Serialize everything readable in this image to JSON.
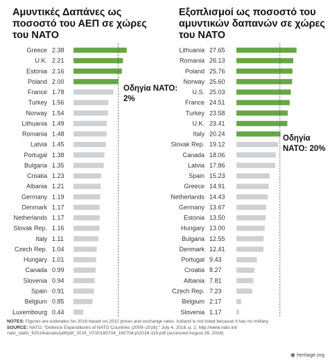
{
  "chart_data": [
    {
      "type": "bar",
      "orientation": "horizontal",
      "title": "Αμυντικές Δαπάνες ως ποσοστό του ΑΕΠ σε χώρες του ΝΑΤΟ",
      "title_lines": [
        "Αμυντικές Δαπάνες ως",
        "ποσοστό του ΑΕΠ σε χώρες",
        "του ΝΑΤΟ"
      ],
      "categories": [
        "Greece",
        "U.K.",
        "Estonia",
        "Poland",
        "France",
        "Turkey",
        "Norway",
        "Lithuania",
        "Romania",
        "Latvia",
        "Portugal",
        "Bulgaria",
        "Croatia",
        "Albania",
        "Germany",
        "Denmark",
        "Netherlands",
        "Slovak Rep.",
        "Italy",
        "Czech Rep.",
        "Hungary",
        "Canada",
        "Slovenia",
        "Spain",
        "Belgium",
        "Luxembourg"
      ],
      "values": [
        2.38,
        2.21,
        2.16,
        2.0,
        1.78,
        1.56,
        1.54,
        1.49,
        1.48,
        1.45,
        1.38,
        1.35,
        1.23,
        1.21,
        1.19,
        1.17,
        1.17,
        1.16,
        1.11,
        1.04,
        1.01,
        0.99,
        0.94,
        0.91,
        0.85,
        0.44
      ],
      "value_labels": [
        "2.38",
        "2.21",
        "2.16",
        "2.00",
        "1.78",
        "1.56",
        "1.54",
        "1.49",
        "1.48",
        "1.45",
        "1.38",
        "1.35",
        "1.23",
        "1.21",
        "1.19",
        "1.17",
        "1.17",
        "1.16",
        "1.11",
        "1.04",
        "1.01",
        "0.99",
        "0.94",
        "0.91",
        "0.85",
        "0.44"
      ],
      "threshold": 2.0,
      "annotation_lines": [
        "Οδηγία ΝΑΤΟ:",
        "2%"
      ],
      "xlim": [
        0,
        2.6
      ]
    },
    {
      "type": "bar",
      "orientation": "horizontal",
      "title": "Εξοπλισμοί ως ποσοστό του αμυντικών δαπανών σε χώρες του ΝΑΤΟ",
      "title_lines": [
        "Εξοπλισμοί ως ποσοστό του",
        "αμυντικών δαπανών σε χώρες",
        "του ΝΑΤΟ"
      ],
      "categories": [
        "Lithuania",
        "Romania",
        "Poland",
        "Norway",
        "U.S.",
        "France",
        "Turkey",
        "U.K.",
        "Italy",
        "Slovak Rep.",
        "Canada",
        "Latvia",
        "Spain",
        "Greece",
        "Netherlands",
        "Germany",
        "Estonia",
        "Hungary",
        "Bulgaria",
        "Denmark",
        "Portugal",
        "Croatia",
        "Albania",
        "Czech Rep.",
        "Belgium",
        "Slovenia"
      ],
      "values": [
        27.65,
        26.13,
        25.76,
        25.6,
        25.03,
        24.51,
        23.58,
        23.41,
        20.24,
        19.12,
        18.06,
        17.86,
        15.23,
        14.91,
        14.43,
        13.67,
        13.5,
        13.0,
        12.55,
        12.41,
        9.43,
        8.27,
        7.81,
        7.23,
        2.17,
        1.17
      ],
      "value_labels": [
        "27.65",
        "26.13",
        "25.76",
        "25.60",
        "25.03",
        "24.51",
        "23.58",
        "23.41",
        "20.24",
        "19.12",
        "18.06",
        "17.86",
        "15.23",
        "14.91",
        "14.43",
        "13.67",
        "13.50",
        "13.00",
        "12.55",
        "12.41",
        "9.43",
        "8.27",
        "7.81",
        "7.23",
        "2.17",
        "1.17"
      ],
      "threshold": 20.0,
      "annotation_lines": [
        "Οδηγία",
        "ΝΑΤΟ: 20%"
      ],
      "xlim": [
        0,
        29
      ]
    }
  ],
  "colors": {
    "highlight": "#66a744",
    "other": "#cfd0d1",
    "threshold_line": "#555555"
  },
  "notes": {
    "label": "NOTES:",
    "text": " Figures are estimates for 2016 based on 2010 prices and exchange rates. Iceland is not listed because it has no military.",
    "source_label": "SOURCE:",
    "source_text": " NATO, “Defence Expenditures of NATO Countries (2009–2016),” July 4, 2016, p. 2, http://www.nato.int/ nato_static_fl2014/assets/pdf/pdf_2016_07/20160704_160704-pr2016-116.pdf (accessed August 26, 2016)"
  },
  "brand": "heritage.org"
}
